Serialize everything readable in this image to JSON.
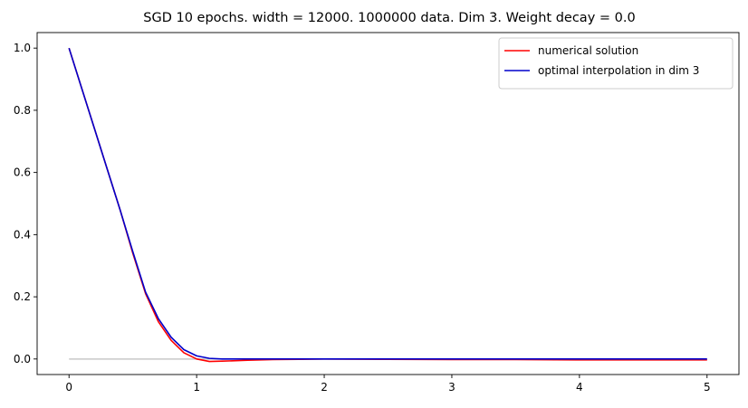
{
  "chart_data": {
    "type": "line",
    "title": "SGD 10 epochs. width = 12000. 1000000 data. Dim 3. Weight decay = 0.0",
    "xlabel": "",
    "ylabel": "",
    "xlim": [
      -0.25,
      5.25
    ],
    "ylim": [
      -0.05,
      1.05
    ],
    "xticks": [
      0,
      1,
      2,
      3,
      4,
      5
    ],
    "xtick_labels": [
      "0",
      "1",
      "2",
      "3",
      "4",
      "5"
    ],
    "yticks": [
      0.0,
      0.2,
      0.4,
      0.6,
      0.8,
      1.0
    ],
    "ytick_labels": [
      "0.0",
      "0.2",
      "0.4",
      "0.6",
      "0.8",
      "1.0"
    ],
    "grid": false,
    "legend_position": "top-right",
    "zero_line": {
      "x": [
        0,
        5
      ],
      "y": [
        0,
        0
      ],
      "color": "#c8c8c8"
    },
    "series": [
      {
        "name": "numerical solution",
        "color": "#ff0000",
        "x": [
          0,
          0.1,
          0.2,
          0.3,
          0.4,
          0.5,
          0.6,
          0.7,
          0.8,
          0.9,
          1.0,
          1.1,
          1.2,
          1.4,
          1.6,
          1.8,
          2.0,
          2.5,
          3.0,
          3.5,
          4.0,
          4.5,
          5.0
        ],
        "y": [
          1.0,
          0.87,
          0.74,
          0.61,
          0.48,
          0.34,
          0.21,
          0.12,
          0.06,
          0.02,
          0.0,
          -0.008,
          -0.007,
          -0.004,
          -0.002,
          -0.001,
          0.0,
          -0.001,
          -0.002,
          -0.002,
          -0.003,
          -0.003,
          -0.003
        ]
      },
      {
        "name": "optimal interpolation in dim 3",
        "color": "#0000cc",
        "x": [
          0,
          0.1,
          0.2,
          0.3,
          0.4,
          0.5,
          0.6,
          0.7,
          0.8,
          0.9,
          1.0,
          1.1,
          1.2,
          1.4,
          1.6,
          1.8,
          2.0,
          2.5,
          3.0,
          3.5,
          4.0,
          4.5,
          5.0
        ],
        "y": [
          1.0,
          0.87,
          0.74,
          0.61,
          0.48,
          0.345,
          0.215,
          0.13,
          0.07,
          0.03,
          0.01,
          0.002,
          0.0,
          0.0,
          0.0,
          0.0,
          0.0,
          0.0,
          0.0,
          0.0,
          0.0,
          0.0,
          0.0
        ]
      }
    ]
  }
}
